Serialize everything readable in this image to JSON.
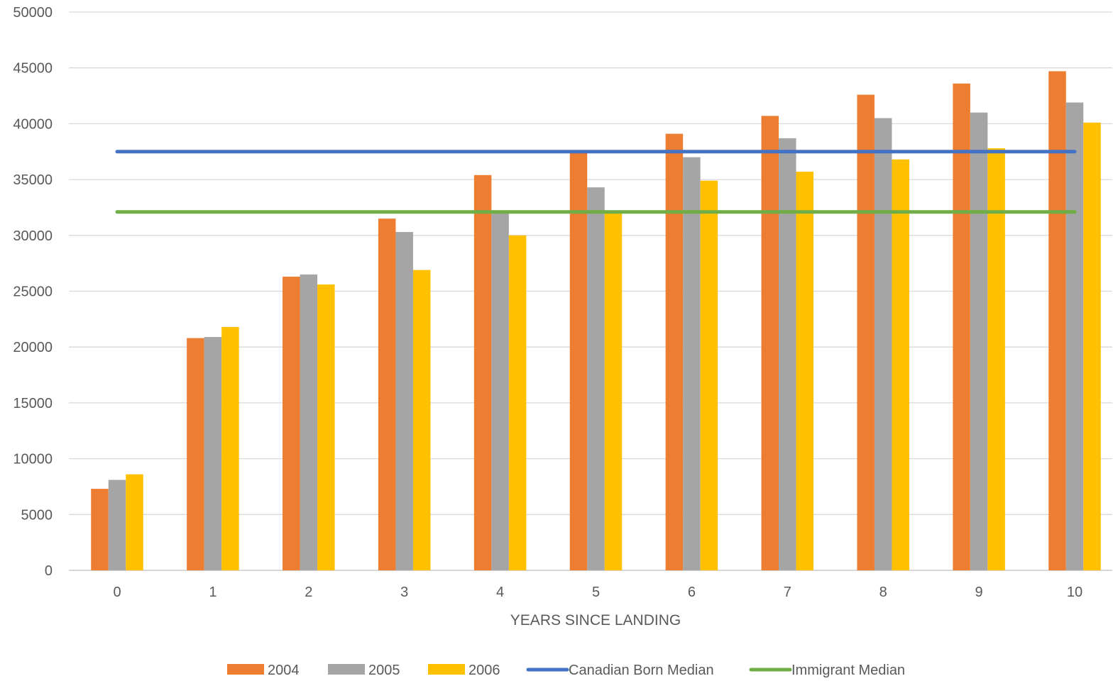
{
  "chart_data": {
    "type": "bar",
    "title": "",
    "xlabel": "YEARS SINCE LANDING",
    "ylabel": "",
    "ylim": [
      0,
      50000
    ],
    "yticks": [
      0,
      5000,
      10000,
      15000,
      20000,
      25000,
      30000,
      35000,
      40000,
      45000,
      50000
    ],
    "yticks_text": [
      "0",
      "5000",
      "10000",
      "15000",
      "20000",
      "25000",
      "30000",
      "35000",
      "40000",
      "45000",
      "50000"
    ],
    "grid": true,
    "legend_position": "bottom",
    "categories": [
      "0",
      "1",
      "2",
      "3",
      "4",
      "5",
      "6",
      "7",
      "8",
      "9",
      "10"
    ],
    "series": [
      {
        "name": "2004",
        "color": "#ED7D31",
        "values": [
          7300,
          20800,
          26300,
          31500,
          35400,
          37400,
          39100,
          40700,
          42600,
          43600,
          44700
        ]
      },
      {
        "name": "2005",
        "color": "#A5A5A5",
        "values": [
          8100,
          20900,
          26500,
          30300,
          32000,
          34300,
          37000,
          38700,
          40500,
          41000,
          41900
        ]
      },
      {
        "name": "2006",
        "color": "#FFC000",
        "values": [
          8600,
          21800,
          25600,
          26900,
          30000,
          32000,
          34900,
          35700,
          36800,
          37800,
          40100
        ]
      }
    ],
    "lines": [
      {
        "name": "Canadian Born Median",
        "color": "#4472C4",
        "value": 37500
      },
      {
        "name": "Immigrant Median",
        "color": "#70AD47",
        "value": 32100
      }
    ]
  }
}
